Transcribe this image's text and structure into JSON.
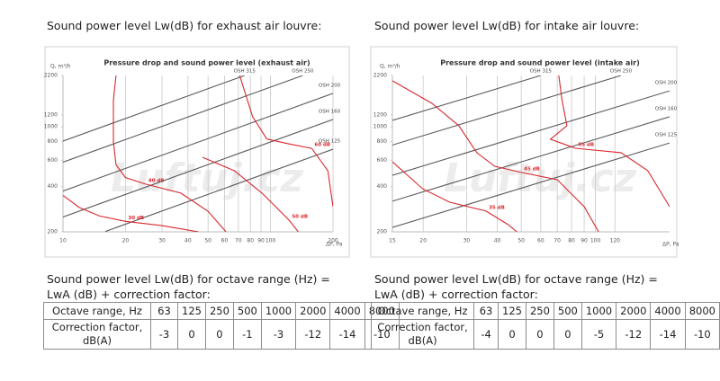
{
  "panels": [
    {
      "heading": "Sound power level Lw(dB) for exhaust air louvre:",
      "caption": "Sound power level Lw(dB) for octave range (Hz) = LwA (dB) + correction factor:",
      "table": {
        "header": [
          "Octave range, Hz",
          63,
          125,
          250,
          500,
          1000,
          2000,
          4000,
          8000
        ],
        "rows": [
          [
            "Correction factor, dB(A)",
            -3,
            0,
            0,
            -1,
            -3,
            -12,
            -14,
            -10
          ]
        ]
      }
    },
    {
      "heading": "Sound power level Lw(dB) for intake air louvre:",
      "caption": "Sound power level Lw(dB) for octave range (Hz) = LwA (dB) + correction factor:",
      "table": {
        "header": [
          "Octave range, Hz",
          63,
          125,
          250,
          500,
          1000,
          2000,
          4000,
          8000
        ],
        "rows": [
          [
            "Correction factor, dB(A)",
            -4,
            0,
            0,
            0,
            -5,
            -12,
            -14,
            -10
          ]
        ]
      }
    }
  ],
  "chart_data": [
    {
      "type": "line",
      "title": "Pressure drop and sound power level (exhaust air)",
      "watermark": "Luftuj.cz",
      "x_label": "ΔP, Pa",
      "y_label": "Q, m³/h",
      "xlog": true,
      "ylog": true,
      "grid": "x",
      "xlim": [
        10,
        200
      ],
      "ylim": [
        200,
        2200
      ],
      "xticks": [
        10,
        20,
        30,
        40,
        50,
        60,
        70,
        80,
        90,
        100,
        200
      ],
      "yticks": [
        200,
        400,
        600,
        800,
        1000,
        1200,
        2200
      ],
      "series": [
        {
          "name": "OSH 315",
          "color": "#5a5a5a",
          "x": [
            10,
            75
          ],
          "values": [
            805,
            2200
          ]
        },
        {
          "name": "OSH 250",
          "color": "#5a5a5a",
          "x": [
            10,
            143
          ],
          "values": [
            582,
            2200
          ]
        },
        {
          "name": "OSH 200",
          "color": "#5a5a5a",
          "x": [
            10,
            200
          ],
          "values": [
            374,
            1672
          ]
        },
        {
          "name": "OSH 160",
          "color": "#5a5a5a",
          "x": [
            10,
            200
          ],
          "values": [
            251,
            1122
          ]
        },
        {
          "name": "OSH 125",
          "color": "#5a5a5a",
          "x": [
            16,
            200
          ],
          "values": [
            201,
            711
          ]
        },
        {
          "name": "30 dB",
          "color": "#d9272e",
          "x": [
            10,
            12,
            15,
            20,
            30,
            45
          ],
          "values": [
            350,
            290,
            255,
            235,
            220,
            200
          ]
        },
        {
          "name": "40 dB",
          "color": "#d9272e",
          "x": [
            18,
            17.5,
            17.5,
            18,
            20,
            25,
            37,
            50,
            61
          ],
          "values": [
            2200,
            1500,
            800,
            560,
            460,
            416,
            362,
            274,
            200
          ]
        },
        {
          "name": "50 dB",
          "color": "#d9272e",
          "x": [
            47,
            67,
            91,
            123,
            136
          ],
          "values": [
            628,
            510,
            362,
            239,
            200
          ]
        },
        {
          "name": "60 dB",
          "color": "#d9272e",
          "x": [
            71,
            82,
            96,
            123,
            158,
            189,
            200
          ],
          "values": [
            2200,
            1168,
            830,
            770,
            720,
            510,
            294
          ]
        }
      ]
    },
    {
      "type": "line",
      "title": "Pressure drop and sound power level (intake air)",
      "watermark": "Luftuj.cz",
      "x_label": "ΔP, Pa",
      "y_label": "Q, m³/h",
      "xlog": true,
      "ylog": true,
      "grid": "x",
      "xlim": [
        15,
        200
      ],
      "ylim": [
        200,
        2200
      ],
      "xticks": [
        15,
        20,
        30,
        40,
        50,
        60,
        70,
        80,
        90,
        100,
        120
      ],
      "yticks": [
        200,
        400,
        600,
        800,
        1000,
        1200,
        2200
      ],
      "series": [
        {
          "name": "OSH 315",
          "color": "#5a5a5a",
          "x": [
            15,
            60
          ],
          "values": [
            1104,
            2200
          ]
        },
        {
          "name": "OSH 250",
          "color": "#5a5a5a",
          "x": [
            15,
            127
          ],
          "values": [
            757,
            2200
          ]
        },
        {
          "name": "OSH 200",
          "color": "#5a5a5a",
          "x": [
            15,
            200
          ],
          "values": [
            476,
            1738
          ]
        },
        {
          "name": "OSH 160",
          "color": "#5a5a5a",
          "x": [
            15,
            200
          ],
          "values": [
            320,
            1168
          ]
        },
        {
          "name": "OSH 125",
          "color": "#5a5a5a",
          "x": [
            15,
            200
          ],
          "values": [
            214,
            781
          ]
        },
        {
          "name": "35 dB",
          "color": "#d9272e",
          "x": [
            15,
            19.9,
            25.6,
            36,
            44.3,
            48
          ],
          "values": [
            586,
            387,
            315,
            275,
            223,
            200
          ]
        },
        {
          "name": "45 dB",
          "color": "#d9272e",
          "x": [
            15,
            21.7,
            27.9,
            33,
            39,
            50,
            70,
            90,
            103
          ],
          "values": [
            2028,
            1436,
            1018,
            673,
            547,
            497,
            445,
            294,
            200
          ]
        },
        {
          "name": "55 dB",
          "color": "#d9272e",
          "x": [
            71,
            73,
            76.6,
            65.7,
            83,
            127,
            163,
            200
          ],
          "values": [
            2200,
            1539,
            1018,
            828,
            721,
            673,
            511,
            294
          ]
        }
      ]
    }
  ]
}
